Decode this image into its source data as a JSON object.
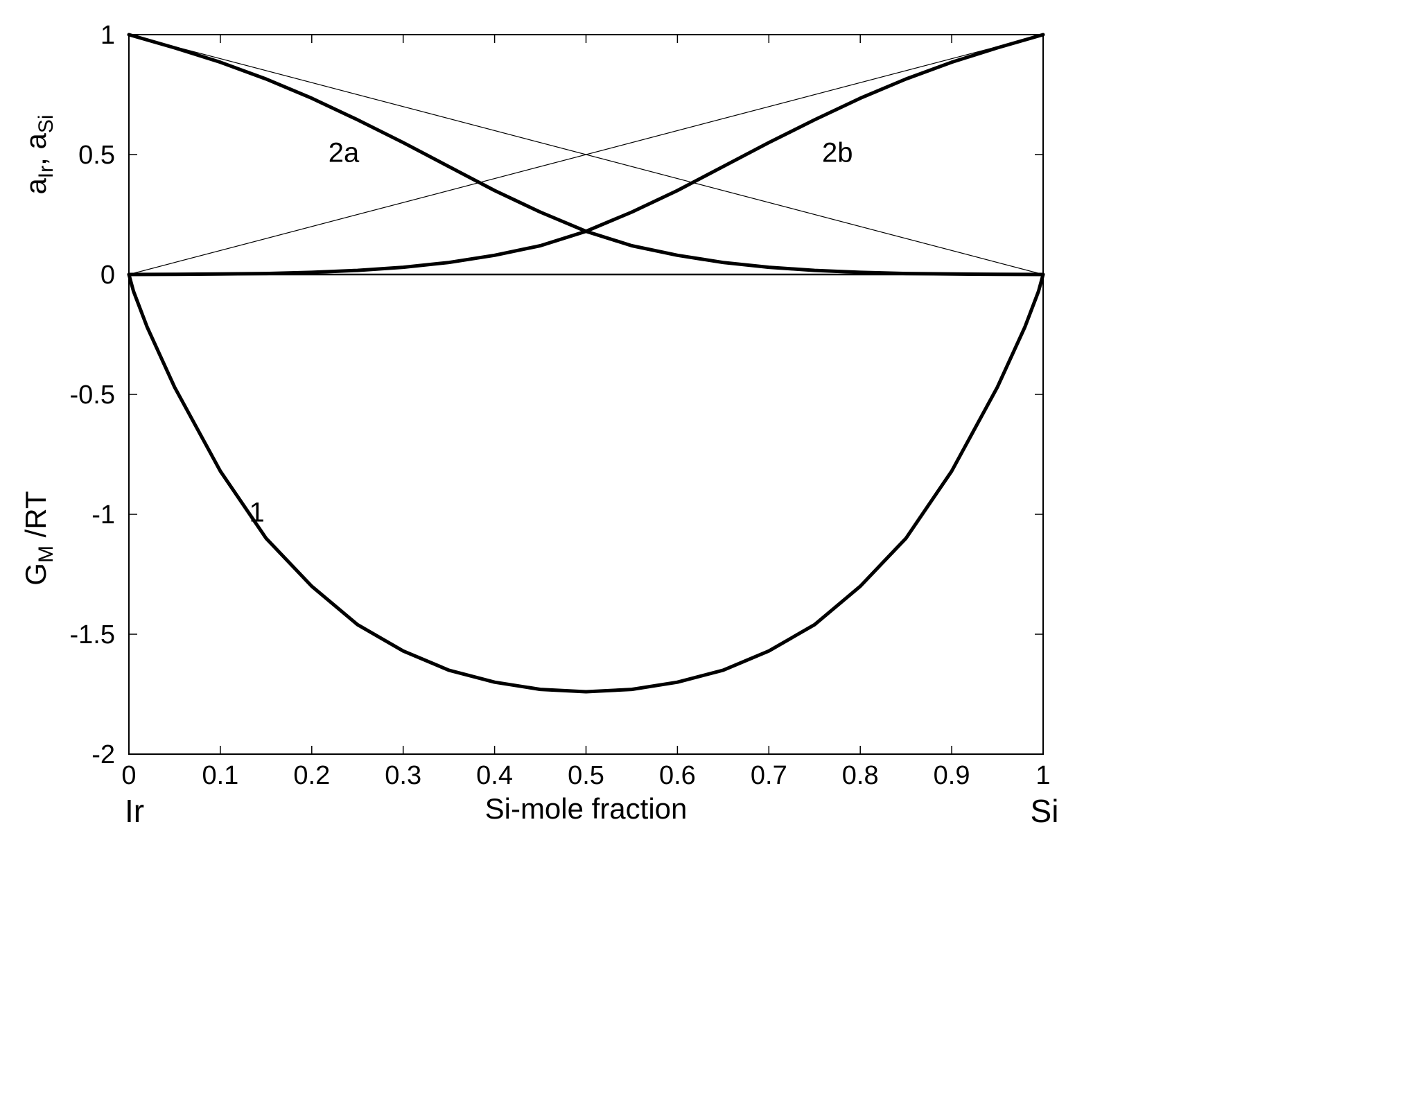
{
  "chart_data": {
    "type": "line",
    "title": "",
    "xlabel": "Si-mole fraction",
    "x_end_labels": {
      "left": "Ir",
      "right": "Si"
    },
    "ylabel_upper": {
      "parts": [
        "a",
        "Ir",
        ", a",
        "Si"
      ]
    },
    "ylabel_lower": {
      "parts": [
        "G",
        "M",
        " /RT"
      ]
    },
    "xlim": [
      0,
      1
    ],
    "ylim": [
      -2,
      1
    ],
    "x_ticks": [
      "0",
      "0.1",
      "0.2",
      "0.3",
      "0.4",
      "0.5",
      "0.6",
      "0.7",
      "0.8",
      "0.9",
      "1"
    ],
    "y_ticks": [
      "-2",
      "-1.5",
      "-1",
      "-0.5",
      "0",
      "0.5",
      "1"
    ],
    "grid": false,
    "colors": {
      "line": "#000000",
      "axis": "#000000",
      "background": "#ffffff"
    },
    "series": [
      {
        "name": "1",
        "label_at": [
          0.14,
          -1.0
        ],
        "style": "thick",
        "x": [
          0,
          0.005,
          0.02,
          0.05,
          0.1,
          0.15,
          0.2,
          0.25,
          0.3,
          0.35,
          0.4,
          0.45,
          0.5,
          0.55,
          0.6,
          0.65,
          0.7,
          0.75,
          0.8,
          0.85,
          0.9,
          0.95,
          0.98,
          0.995,
          1
        ],
        "y": [
          0,
          -0.07,
          -0.22,
          -0.47,
          -0.82,
          -1.1,
          -1.3,
          -1.46,
          -1.57,
          -1.65,
          -1.7,
          -1.73,
          -1.74,
          -1.73,
          -1.7,
          -1.65,
          -1.57,
          -1.46,
          -1.3,
          -1.1,
          -0.82,
          -0.47,
          -0.22,
          -0.07,
          0
        ]
      },
      {
        "name": "2a",
        "label_at": [
          0.235,
          0.5
        ],
        "style": "thick",
        "x": [
          0,
          0.05,
          0.1,
          0.15,
          0.2,
          0.25,
          0.3,
          0.35,
          0.4,
          0.45,
          0.5,
          0.55,
          0.6,
          0.65,
          0.7,
          0.75,
          0.8,
          0.85,
          0.9,
          0.95,
          1
        ],
        "y": [
          1,
          0.945,
          0.885,
          0.815,
          0.735,
          0.645,
          0.55,
          0.45,
          0.35,
          0.26,
          0.18,
          0.12,
          0.08,
          0.05,
          0.03,
          0.017,
          0.009,
          0.004,
          0.002,
          0.0005,
          0
        ]
      },
      {
        "name": "2b",
        "label_at": [
          0.775,
          0.5
        ],
        "style": "thick",
        "x": [
          0,
          0.05,
          0.1,
          0.15,
          0.2,
          0.25,
          0.3,
          0.35,
          0.4,
          0.45,
          0.5,
          0.55,
          0.6,
          0.65,
          0.7,
          0.75,
          0.8,
          0.85,
          0.9,
          0.95,
          1
        ],
        "y": [
          0,
          0.0005,
          0.002,
          0.004,
          0.009,
          0.017,
          0.03,
          0.05,
          0.08,
          0.12,
          0.18,
          0.26,
          0.35,
          0.45,
          0.55,
          0.645,
          0.735,
          0.815,
          0.885,
          0.945,
          1
        ]
      },
      {
        "style": "thin",
        "x": [
          0,
          1
        ],
        "y": [
          1,
          0
        ]
      },
      {
        "style": "thin",
        "x": [
          0,
          1
        ],
        "y": [
          0,
          1
        ]
      },
      {
        "style": "medium",
        "x": [
          0,
          1
        ],
        "y": [
          0,
          0
        ]
      }
    ]
  }
}
